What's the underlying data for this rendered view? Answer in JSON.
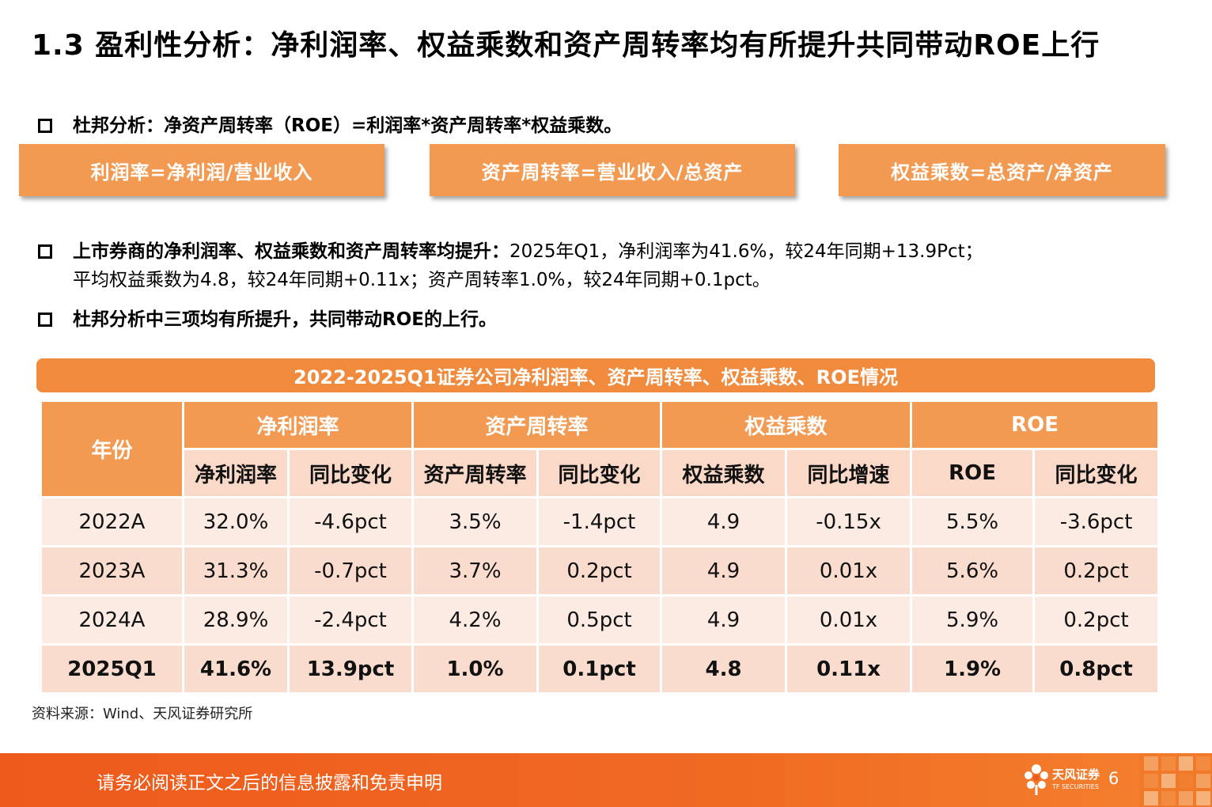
{
  "title": "1.3 盈利性分析：净利润率、权益乘数和资产周转率均有所提升共同带动ROE上行",
  "dupont_bullet": "杜邦分析：净资产周转率（ROE）=利润率*资产周转率*权益乘数。",
  "formulas": [
    "利润率=净利润/营业收入",
    "资产周转率=营业收入/总资产",
    "权益乘数=总资产/净资产"
  ],
  "bullet2": {
    "bold": "上市券商的净利润率、权益乘数和资产周转率均提升：",
    "line1": "2025年Q1，净利润率为41.6%，较24年同期+13.9Pct；",
    "line2": "平均权益乘数为4.8，较24年同期+0.11x；资产周转率1.0%，较24年同期+0.1pct。"
  },
  "bullet3": "杜邦分析中三项均有所提升，共同带动ROE的上行。",
  "table": {
    "banner": "2022-2025Q1证券公司净利润率、资产周转率、权益乘数、ROE情况",
    "year_header": "年份",
    "groups": [
      "净利润率",
      "资产周转率",
      "权益乘数",
      "ROE"
    ],
    "subheaders": [
      "净利润率",
      "同比变化",
      "资产周转率",
      "同比变化",
      "权益乘数",
      "同比增速",
      "ROE",
      "同比变化"
    ],
    "rows": [
      [
        "2022A",
        "32.0%",
        "-4.6pct",
        "3.5%",
        "-1.4pct",
        "4.9",
        "-0.15x",
        "5.5%",
        "-3.6pct"
      ],
      [
        "2023A",
        "31.3%",
        "-0.7pct",
        "3.7%",
        "0.2pct",
        "4.9",
        "0.01x",
        "5.6%",
        "0.2pct"
      ],
      [
        "2024A",
        "28.9%",
        "-2.4pct",
        "4.2%",
        "0.5pct",
        "4.9",
        "0.01x",
        "5.9%",
        "0.2pct"
      ],
      [
        "2025Q1",
        "41.6%",
        "13.9pct",
        "1.0%",
        "0.1pct",
        "4.8",
        "0.11x",
        "1.9%",
        "0.8pct"
      ]
    ]
  },
  "source": "资料来源：Wind、天风证券研究所",
  "footer": {
    "disclaimer": "请务必阅读正文之后的信息披露和免责申明",
    "logo_name": "天风证券",
    "logo_sub": "TF SECURITIES",
    "page": "6"
  },
  "colors": {
    "accent": "#f39a52",
    "banner": "#f08a3c",
    "light_row": "#fcebe3",
    "dark_row": "#f9dccd",
    "footer": "#ee5a1c"
  }
}
